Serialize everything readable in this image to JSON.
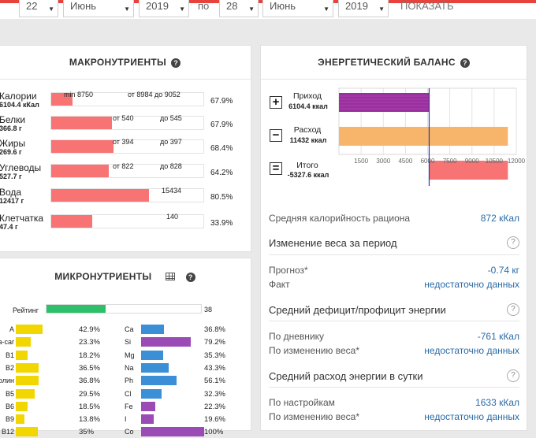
{
  "date_range": {
    "from_day": "22",
    "from_month": "Июнь",
    "from_year": "2019",
    "to_label": "по",
    "to_day": "28",
    "to_month": "Июнь",
    "to_year": "2019",
    "show_label": "ПОКАЗАТЬ"
  },
  "macro": {
    "title": "МАКРОНУТРИЕНТЫ",
    "help": "?",
    "rows": [
      {
        "name": "Калории",
        "value": "6104.4 кКал",
        "fill": 0.14,
        "labels": [
          "min 8750",
          "от 8984 до 9052"
        ],
        "pct": "67.9%"
      },
      {
        "name": "Белки",
        "value": "366.8 г",
        "fill": 0.4,
        "labels": [
          "от 540",
          "до 545"
        ],
        "pct": "67.9%"
      },
      {
        "name": "Жиры",
        "value": "269.6 г",
        "fill": 0.41,
        "labels": [
          "от 394",
          "до 397"
        ],
        "pct": "68.4%"
      },
      {
        "name": "Углеводы",
        "value": "527.7 г",
        "fill": 0.38,
        "labels": [
          "от 822",
          "до 828"
        ],
        "pct": "64.2%"
      },
      {
        "name": "Вода",
        "value": "12417 г",
        "fill": 0.64,
        "labels": [
          "15434"
        ],
        "pct": "80.5%"
      },
      {
        "name": "Клетчатка",
        "value": "47.4 г",
        "fill": 0.27,
        "labels": [
          "140"
        ],
        "pct": "33.9%"
      }
    ]
  },
  "micro": {
    "title": "МИКРОНУТРИЕНТЫ",
    "help": "?",
    "rating_label": "Рейтинг",
    "rating_value": "38",
    "rating_fill": 0.38,
    "left": [
      {
        "name": "A",
        "pct": "42.9%",
        "fill": 0.429
      },
      {
        "name": "Бета-car",
        "pct": "23.3%",
        "fill": 0.233
      },
      {
        "name": "B1",
        "pct": "18.2%",
        "fill": 0.182
      },
      {
        "name": "B2",
        "pct": "36.5%",
        "fill": 0.365
      },
      {
        "name": "Холин",
        "pct": "36.8%",
        "fill": 0.368
      },
      {
        "name": "B5",
        "pct": "29.5%",
        "fill": 0.295
      },
      {
        "name": "B6",
        "pct": "18.5%",
        "fill": 0.185
      },
      {
        "name": "B9",
        "pct": "13.8%",
        "fill": 0.138
      },
      {
        "name": "B12",
        "pct": "35%",
        "fill": 0.35
      }
    ],
    "right": [
      {
        "name": "Ca",
        "pct": "36.8%",
        "fill": 0.368,
        "color": "#3b8fd6"
      },
      {
        "name": "Si",
        "pct": "79.2%",
        "fill": 0.792,
        "color": "#9b4bb5"
      },
      {
        "name": "Mg",
        "pct": "35.3%",
        "fill": 0.353,
        "color": "#3b8fd6"
      },
      {
        "name": "Na",
        "pct": "43.3%",
        "fill": 0.433,
        "color": "#3b8fd6"
      },
      {
        "name": "Ph",
        "pct": "56.1%",
        "fill": 0.561,
        "color": "#3b8fd6"
      },
      {
        "name": "Cl",
        "pct": "32.3%",
        "fill": 0.323,
        "color": "#3b8fd6"
      },
      {
        "name": "Fe",
        "pct": "22.3%",
        "fill": 0.223,
        "color": "#9b4bb5"
      },
      {
        "name": "I",
        "pct": "19.6%",
        "fill": 0.196,
        "color": "#9b4bb5"
      },
      {
        "name": "Co",
        "pct": "100%",
        "fill": 1.0,
        "color": "#9b4bb5"
      }
    ],
    "left_color": "#f2d600"
  },
  "energy": {
    "title": "ЭНЕРГЕТИЧЕСКИЙ БАЛАНС",
    "help": "?",
    "income_name": "Приход",
    "income_value": "6104.4 ккал",
    "income_amount": 6104.4,
    "expense_name": "Расход",
    "expense_value": "11432 ккал",
    "expense_amount": 11432,
    "total_name": "Итого",
    "total_value": "-5327.6 ккал",
    "total_amount": -5327.6,
    "ticks": [
      "1500",
      "3000",
      "4500",
      "6000",
      "7500",
      "9000",
      "10500",
      "12000"
    ],
    "plus": "+",
    "minus": "−",
    "equals": "=",
    "avg_label": "Средняя калорийность рациона",
    "avg_value": "872 кКал",
    "weight_head": "Изменение веса за период",
    "forecast_label": "Прогноз*",
    "forecast_value": "-0.74 кг",
    "fact_label": "Факт",
    "fact_value": "недостаточно данных",
    "deficit_head": "Средний дефицит/профицит энергии",
    "diary_label": "По дневнику",
    "diary_value": "-761 кКал",
    "wchange_label": "По изменению веса*",
    "wchange_value": "недостаточно данных",
    "daily_head": "Средний расход энергии в сутки",
    "settings_label": "По настройкам",
    "settings_value": "1633 кКал",
    "wchange2_label": "По изменению веса*",
    "wchange2_value": "недостаточно данных"
  }
}
